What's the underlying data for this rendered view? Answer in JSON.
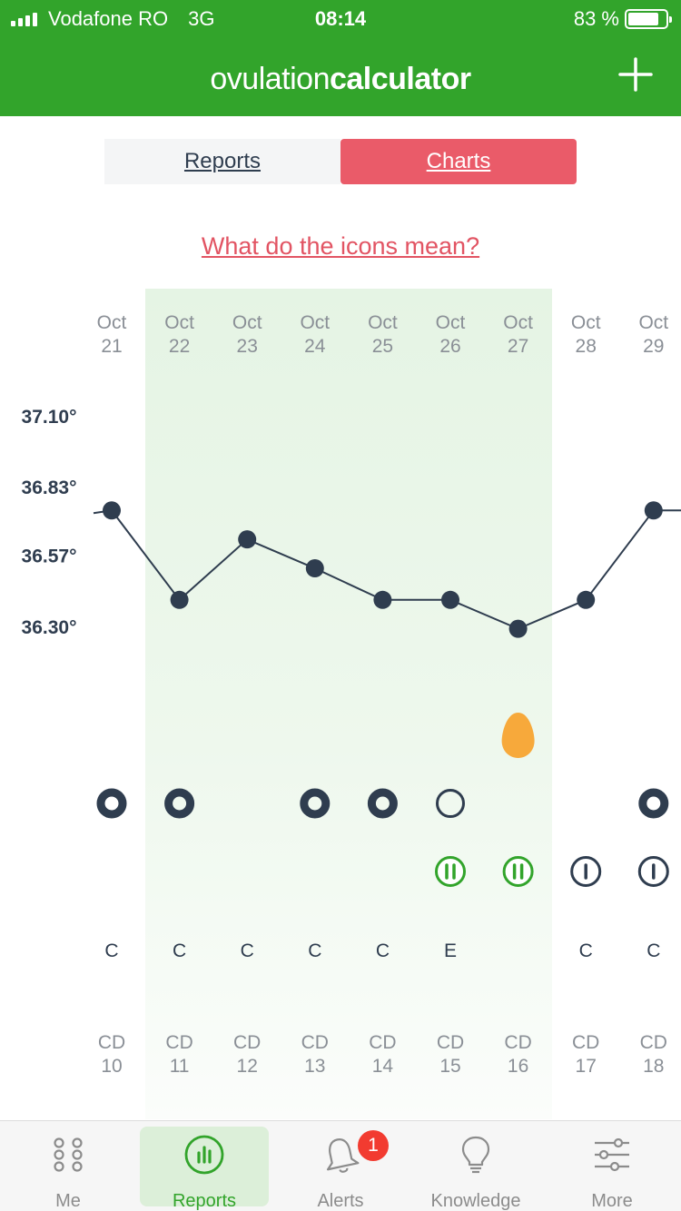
{
  "status_bar": {
    "carrier": "Vodafone RO",
    "network": "3G",
    "time": "08:14",
    "battery": "83 %",
    "battery_level": 0.83
  },
  "header": {
    "logo_light": "ovulation",
    "logo_bold": "calculator",
    "add_icon": "plus-icon"
  },
  "segmented": {
    "reports": "Reports",
    "charts": "Charts",
    "selected": "Charts"
  },
  "help_link": "What do the icons mean?",
  "chart_data": {
    "type": "line",
    "ylim": [
      36.03,
      37.1
    ],
    "y_ticks": [
      "37.10°",
      "36.83°",
      "36.57°",
      "36.30°"
    ],
    "fertile_window": [
      "Oct 22",
      "Oct 27"
    ],
    "days": [
      {
        "month": "Oct",
        "day": "21",
        "temp": 36.74,
        "cycle_marker": "filled-ring",
        "intercourse": "",
        "mucus": "C",
        "cd": "10"
      },
      {
        "month": "Oct",
        "day": "22",
        "temp": 36.4,
        "cycle_marker": "filled-ring",
        "intercourse": "",
        "mucus": "C",
        "cd": "11"
      },
      {
        "month": "Oct",
        "day": "23",
        "temp": 36.63,
        "cycle_marker": "",
        "intercourse": "",
        "mucus": "C",
        "cd": "12"
      },
      {
        "month": "Oct",
        "day": "24",
        "temp": 36.52,
        "cycle_marker": "filled-ring",
        "intercourse": "",
        "mucus": "C",
        "cd": "13"
      },
      {
        "month": "Oct",
        "day": "25",
        "temp": 36.4,
        "cycle_marker": "filled-ring",
        "intercourse": "",
        "mucus": "C",
        "cd": "14"
      },
      {
        "month": "Oct",
        "day": "26",
        "temp": 36.4,
        "cycle_marker": "empty-ring",
        "intercourse": "double-green",
        "mucus": "E",
        "cd": "15"
      },
      {
        "month": "Oct",
        "day": "27",
        "temp": 36.29,
        "cycle_marker": "egg",
        "intercourse": "double-green",
        "mucus": "",
        "cd": "16"
      },
      {
        "month": "Oct",
        "day": "28",
        "temp": 36.4,
        "cycle_marker": "",
        "intercourse": "single-dark",
        "mucus": "C",
        "cd": "17"
      },
      {
        "month": "Oct",
        "day": "29",
        "temp": 36.74,
        "cycle_marker": "filled-ring",
        "intercourse": "single-dark",
        "mucus": "C",
        "cd": "18"
      }
    ],
    "cd_label": "CD"
  },
  "colors": {
    "brand_green": "#32a42b",
    "accent_red": "#ea5b69",
    "line": "#2f3d4f",
    "egg": "#f7a93b",
    "badge_red": "#f23b30"
  },
  "tabs": [
    {
      "label": "Me",
      "icon": "grid-dots-icon"
    },
    {
      "label": "Reports",
      "icon": "bar-chart-icon",
      "active": true
    },
    {
      "label": "Alerts",
      "icon": "bell-icon",
      "badge": "1"
    },
    {
      "label": "Knowledge",
      "icon": "lightbulb-icon"
    },
    {
      "label": "More",
      "icon": "sliders-icon"
    }
  ]
}
